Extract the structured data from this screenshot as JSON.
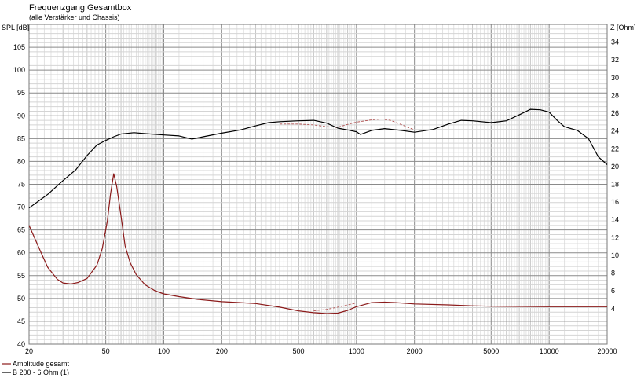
{
  "chart_data": {
    "type": "line",
    "title": "Frequenzgang Gesamtbox",
    "subtitle": "(alle Verstärker und Chassis)",
    "ylabel_left": "SPL [dB]",
    "ylabel_right": "Z [Ohm]",
    "x_scale": "log",
    "xlim": [
      20,
      20000
    ],
    "ylim_left": [
      40,
      110
    ],
    "ylim_right": [
      0,
      36
    ],
    "grid": true,
    "x_ticks": [
      20,
      50,
      100,
      200,
      500,
      1000,
      2000,
      5000,
      10000,
      20000
    ],
    "x_tick_labels": [
      "20",
      "50",
      "100",
      "200",
      "500",
      "1000",
      "2000",
      "5000",
      "10000",
      "20000"
    ],
    "y_left_ticks": [
      40,
      45,
      50,
      55,
      60,
      65,
      70,
      75,
      80,
      85,
      90,
      95,
      100,
      105
    ],
    "y_left_tick_labels": [
      "40",
      "45",
      "50",
      "55",
      "60",
      "65",
      "70",
      "75",
      "80",
      "85",
      "90",
      "95",
      "100",
      "105"
    ],
    "y_right_ticks": [
      4,
      6,
      8,
      10,
      12,
      14,
      16,
      18,
      20,
      22,
      24,
      26,
      28,
      30,
      32,
      34
    ],
    "y_right_tick_labels": [
      "4",
      "6",
      "8",
      "10",
      "12",
      "14",
      "16",
      "18",
      "20",
      "22",
      "24",
      "26",
      "28",
      "30",
      "32",
      "34"
    ],
    "legend": {
      "placement": "bottom-left"
    },
    "series": [
      {
        "name": "Amplitude gesamt",
        "color": "#000000",
        "axis": "left",
        "points": [
          [
            20,
            69.8
          ],
          [
            25,
            72.8
          ],
          [
            30,
            75.8
          ],
          [
            35,
            78.2
          ],
          [
            40,
            81.3
          ],
          [
            45,
            83.6
          ],
          [
            50,
            84.6
          ],
          [
            55,
            85.4
          ],
          [
            60,
            86.0
          ],
          [
            70,
            86.3
          ],
          [
            80,
            86.1
          ],
          [
            100,
            85.8
          ],
          [
            120,
            85.6
          ],
          [
            140,
            84.9
          ],
          [
            160,
            85.4
          ],
          [
            200,
            86.2
          ],
          [
            250,
            86.9
          ],
          [
            300,
            87.8
          ],
          [
            350,
            88.5
          ],
          [
            400,
            88.7
          ],
          [
            500,
            88.9
          ],
          [
            600,
            89.0
          ],
          [
            700,
            88.4
          ],
          [
            800,
            87.3
          ],
          [
            900,
            86.9
          ],
          [
            1000,
            86.5
          ],
          [
            1050,
            85.9
          ],
          [
            1200,
            86.8
          ],
          [
            1400,
            87.2
          ],
          [
            1700,
            86.8
          ],
          [
            2000,
            86.4
          ],
          [
            2500,
            87.0
          ],
          [
            3000,
            88.2
          ],
          [
            3500,
            89.0
          ],
          [
            4000,
            88.9
          ],
          [
            5000,
            88.5
          ],
          [
            6000,
            88.9
          ],
          [
            7000,
            90.2
          ],
          [
            8000,
            91.4
          ],
          [
            9000,
            91.3
          ],
          [
            10000,
            90.8
          ],
          [
            11000,
            89.0
          ],
          [
            12000,
            87.6
          ],
          [
            14000,
            86.8
          ],
          [
            16000,
            85.0
          ],
          [
            18000,
            81.0
          ],
          [
            20000,
            79.3
          ]
        ]
      },
      {
        "name": "B 200 - 6 Ohm (1)",
        "color": "#8b1a1a",
        "axis": "left",
        "points": [
          [
            20,
            66.0
          ],
          [
            23,
            60.2
          ],
          [
            25,
            56.8
          ],
          [
            28,
            54.2
          ],
          [
            30,
            53.4
          ],
          [
            33,
            53.2
          ],
          [
            36,
            53.5
          ],
          [
            40,
            54.4
          ],
          [
            45,
            57.3
          ],
          [
            48,
            61.0
          ],
          [
            51,
            67.0
          ],
          [
            53,
            73.0
          ],
          [
            55,
            77.3
          ],
          [
            57,
            74.5
          ],
          [
            60,
            68.0
          ],
          [
            63,
            61.5
          ],
          [
            67,
            57.8
          ],
          [
            72,
            55.2
          ],
          [
            80,
            53.0
          ],
          [
            90,
            51.7
          ],
          [
            100,
            51.0
          ],
          [
            120,
            50.4
          ],
          [
            150,
            49.8
          ],
          [
            200,
            49.3
          ],
          [
            250,
            49.1
          ],
          [
            300,
            48.9
          ],
          [
            400,
            48.1
          ],
          [
            500,
            47.3
          ],
          [
            600,
            46.9
          ],
          [
            700,
            46.7
          ],
          [
            800,
            46.8
          ],
          [
            900,
            47.4
          ],
          [
            1000,
            48.2
          ],
          [
            1200,
            49.1
          ],
          [
            1400,
            49.2
          ],
          [
            1600,
            49.1
          ],
          [
            2000,
            48.8
          ],
          [
            3000,
            48.6
          ],
          [
            4000,
            48.4
          ],
          [
            5000,
            48.3
          ],
          [
            10000,
            48.2
          ],
          [
            20000,
            48.2
          ]
        ]
      },
      {
        "name": "",
        "color": "#b05050",
        "dashed": true,
        "axis": "left",
        "points": [
          [
            400,
            88.2
          ],
          [
            500,
            88.2
          ],
          [
            600,
            88.0
          ],
          [
            700,
            87.6
          ],
          [
            800,
            87.5
          ],
          [
            900,
            88.1
          ],
          [
            1000,
            88.6
          ],
          [
            1200,
            89.1
          ],
          [
            1350,
            89.3
          ],
          [
            1500,
            89.0
          ],
          [
            1700,
            88.1
          ],
          [
            2000,
            86.9
          ]
        ]
      },
      {
        "name": "",
        "color": "#b05050",
        "dashed": true,
        "axis": "left",
        "points": [
          [
            600,
            47.3
          ],
          [
            700,
            47.6
          ],
          [
            800,
            48.1
          ],
          [
            900,
            48.6
          ],
          [
            1000,
            49.0
          ]
        ]
      }
    ]
  }
}
